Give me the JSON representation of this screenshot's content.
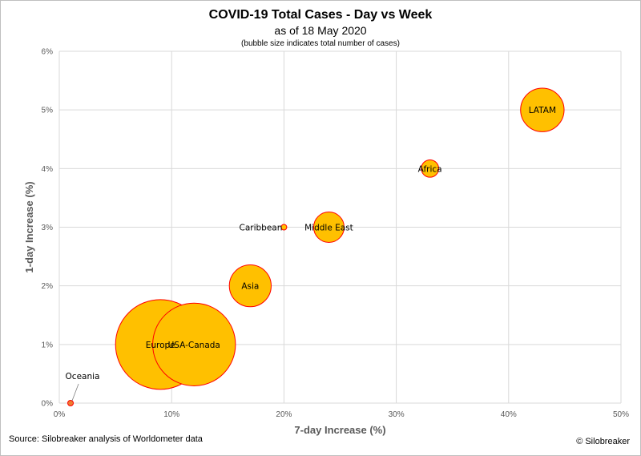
{
  "header": {
    "title": "COVID-19 Total Cases - Day vs Week",
    "subtitle": "as of 18 May 2020",
    "note": "(bubble size indicates total number of cases)"
  },
  "footer": {
    "source": "Source: Silobreaker analysis of Worldometer data",
    "credit": "© Silobreaker"
  },
  "colors": {
    "bubble_fill": "#FFC000",
    "bubble_stroke": "#FF0000",
    "grid": "#D9D9D9",
    "axis_text": "#595959",
    "oceania_marker": "#ED7D31"
  },
  "chart_data": {
    "type": "scatter",
    "bubble": true,
    "title": "COVID-19 Total Cases - Day vs Week",
    "subtitle": "as of 18 May 2020",
    "xlabel": "7-day Increase (%)",
    "ylabel": "1-day Increase (%)",
    "xlim": [
      0,
      50
    ],
    "ylim": [
      0,
      6
    ],
    "xticks": [
      "0%",
      "10%",
      "20%",
      "30%",
      "40%",
      "50%"
    ],
    "yticks": [
      "0%",
      "1%",
      "2%",
      "3%",
      "4%",
      "5%",
      "6%"
    ],
    "grid": true,
    "legend": "none",
    "points": [
      {
        "label": "Europe",
        "x": 9.0,
        "y": 1.0,
        "size": 40
      },
      {
        "label": "USA-Canada",
        "x": 12.0,
        "y": 1.0,
        "size": 34
      },
      {
        "label": "Asia",
        "x": 17.0,
        "y": 2.0,
        "size": 8.7
      },
      {
        "label": "Middle East",
        "x": 24.0,
        "y": 3.0,
        "size": 4.6
      },
      {
        "label": "Caribbean",
        "x": 20.0,
        "y": 3.0,
        "size": 0.07
      },
      {
        "label": "Africa",
        "x": 33.0,
        "y": 4.0,
        "size": 1.5
      },
      {
        "label": "LATAM",
        "x": 43.0,
        "y": 5.0,
        "size": 9.4
      },
      {
        "label": "Oceania",
        "x": 1.0,
        "y": 0.0,
        "size": 0.05
      }
    ]
  }
}
